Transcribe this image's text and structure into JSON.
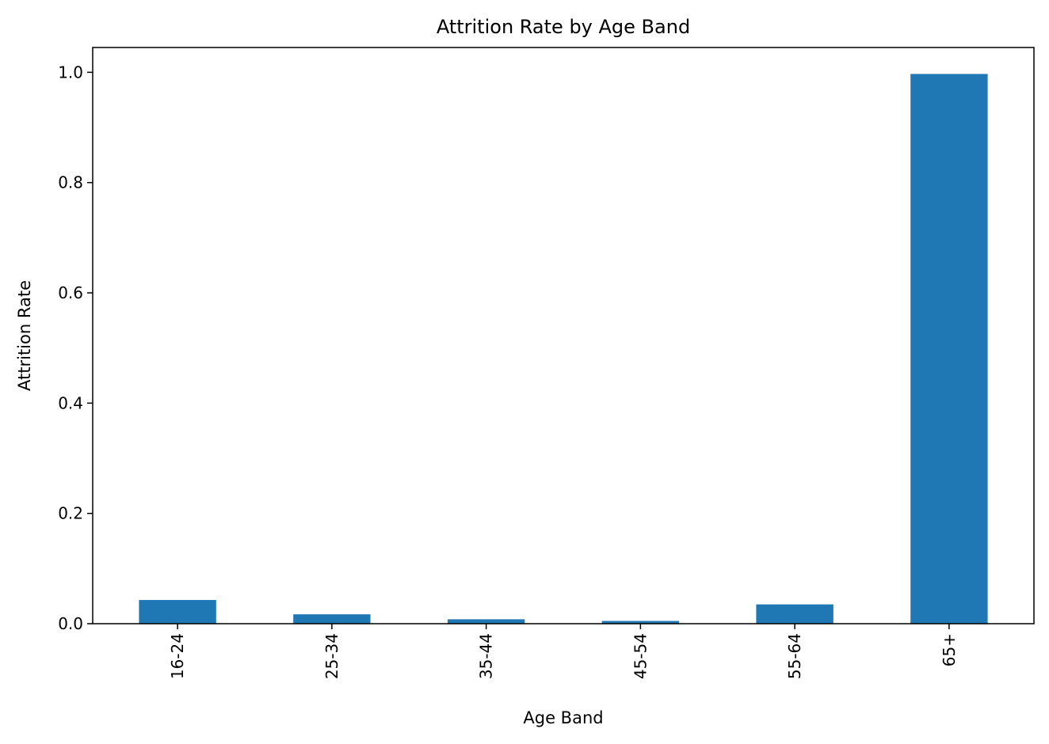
{
  "chart_data": {
    "type": "bar",
    "title": "Attrition Rate by Age Band",
    "xlabel": "Age Band",
    "ylabel": "Attrition Rate",
    "categories": [
      "16-24",
      "25-34",
      "35-44",
      "45-54",
      "55-64",
      "65+"
    ],
    "values": [
      0.043,
      0.017,
      0.008,
      0.005,
      0.035,
      0.997
    ],
    "ylim": [
      0,
      1.045
    ],
    "yticks": [
      0.0,
      0.2,
      0.4,
      0.6,
      0.8,
      1.0
    ],
    "ytick_labels": [
      "0.0",
      "0.2",
      "0.4",
      "0.6",
      "0.8",
      "1.0"
    ],
    "bar_color": "#1f77b4",
    "grid": false,
    "legend": "none"
  }
}
